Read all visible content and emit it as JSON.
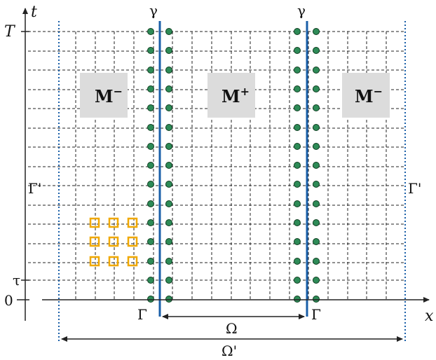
{
  "diagram": {
    "labels": {
      "t_axis": "t",
      "x_axis": "x",
      "T": "T",
      "tau": "τ",
      "zero": "0",
      "gamma_left": "γ",
      "gamma_right": "γ",
      "Gamma_left": "Γ",
      "Gamma_right": "Γ",
      "Gamma_prime_left": "Γ'",
      "Gamma_prime_right": "Γ'",
      "Omega": "Ω",
      "Omega_prime": "Ω'"
    },
    "regions": [
      {
        "main": "M",
        "sup": "−"
      },
      {
        "main": "M",
        "sup": "+"
      },
      {
        "main": "M",
        "sup": "−"
      }
    ],
    "colors": {
      "grid": "#222222",
      "interface_line": "#1a5fa8",
      "node_fill": "#2e8b57",
      "node_stroke": "#0d3d1f",
      "stencil": "#f0a800",
      "region_box": "#dcdcdc",
      "boundary_dotted": "#1a5fa8",
      "axis": "#222222"
    }
  }
}
